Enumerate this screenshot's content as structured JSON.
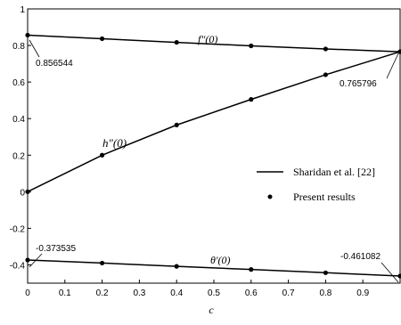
{
  "chart_data": {
    "type": "line",
    "x_ticks": [
      "0",
      "0.1",
      "0.2",
      "0.3",
      "0.4",
      "0.5",
      "0.6",
      "0.7",
      "0.8",
      "0.9"
    ],
    "y_ticks": [
      "1",
      "0.8",
      "0.6",
      "0.4",
      "0.2",
      "0",
      "-0.2",
      "-0.4"
    ],
    "xlabel": "c",
    "ylabel": "",
    "xlim": [
      0,
      1
    ],
    "ylim": [
      -0.5,
      1
    ],
    "grid": false,
    "legend": {
      "position": "right",
      "line_label": "Sharidan et al. [22]",
      "marker_label": "Present results"
    },
    "curve_labels": {
      "fpp": "f″(0)",
      "hpp": "h″(0)",
      "theta": "θ′(0)"
    },
    "annotations": {
      "fpp_start": "0.856544",
      "hpp_end": "0.765796",
      "theta_start": "-0.373535",
      "theta_end": "-0.461082"
    },
    "series": [
      {
        "key": "fpp",
        "line_x": [
          0,
          0.2,
          0.4,
          0.6,
          0.8,
          1.0
        ],
        "line_y": [
          0.856544,
          0.837,
          0.817,
          0.798,
          0.781,
          0.765796
        ],
        "markers_x": [
          0,
          0.2,
          0.4,
          0.6,
          0.8,
          1.0
        ],
        "markers_y": [
          0.856544,
          0.837,
          0.817,
          0.798,
          0.781,
          0.765796
        ]
      },
      {
        "key": "hpp",
        "line_x": [
          0,
          0.2,
          0.4,
          0.6,
          0.8,
          1.0
        ],
        "line_y": [
          0,
          0.2,
          0.365,
          0.505,
          0.64,
          0.765796
        ],
        "markers_x": [
          0,
          0.2,
          0.4,
          0.6,
          0.8,
          1.0
        ],
        "markers_y": [
          0,
          0.2,
          0.365,
          0.505,
          0.64,
          0.765796
        ]
      },
      {
        "key": "theta",
        "line_x": [
          0,
          0.2,
          0.4,
          0.6,
          0.8,
          1.0
        ],
        "line_y": [
          -0.373535,
          -0.39,
          -0.408,
          -0.425,
          -0.443,
          -0.461082
        ],
        "markers_x": [
          0,
          0.2,
          0.4,
          0.6,
          0.8,
          1.0
        ],
        "markers_y": [
          -0.373535,
          -0.39,
          -0.408,
          -0.425,
          -0.443,
          -0.461082
        ]
      }
    ]
  }
}
